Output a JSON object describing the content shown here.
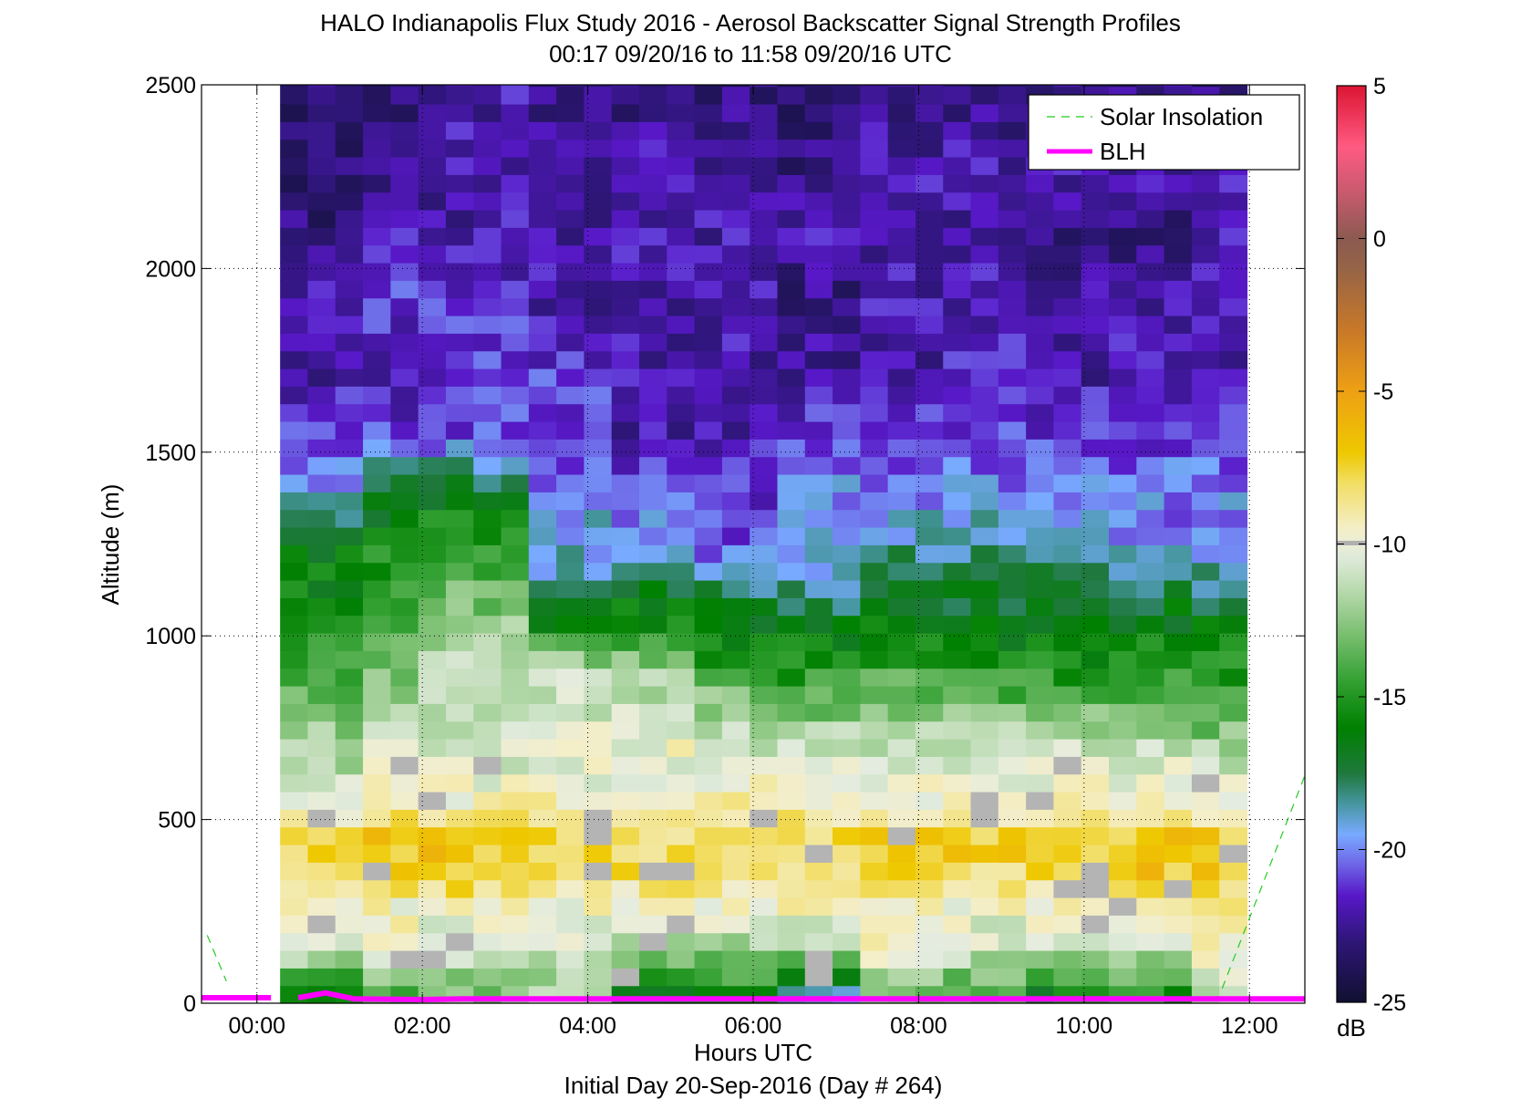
{
  "chart_data": {
    "type": "heatmap",
    "title": "HALO Indianapolis Flux Study 2016 - Aerosol Backscatter Signal Strength Profiles",
    "subtitle": "00:17 09/20/16 to 11:58 09/20/16  UTC",
    "xlabel": "Hours UTC",
    "xlabel2": "Initial Day 20-Sep-2016 (Day # 264)",
    "ylabel": "Altitude (m)",
    "xlim": [
      -0.67,
      12.67
    ],
    "ylim": [
      0,
      2500
    ],
    "x_tick_values": [
      0,
      2,
      4,
      6,
      8,
      10,
      12
    ],
    "x_tick_labels": [
      "00:00",
      "02:00",
      "04:00",
      "06:00",
      "08:00",
      "10:00",
      "12:00"
    ],
    "y_tick_values": [
      0,
      500,
      1000,
      1500,
      2000,
      2500
    ],
    "y_tick_labels": [
      "0",
      "500",
      "1000",
      "1500",
      "2000",
      "2500"
    ],
    "grid": true,
    "colorbar": {
      "label": "dB",
      "limits": [
        -25,
        5
      ],
      "tick_values": [
        5,
        0,
        -5,
        -10,
        -15,
        -20,
        -25
      ],
      "tick_labels": [
        "5",
        "0",
        "-5",
        "-10",
        "-15",
        "-20",
        "-25"
      ]
    },
    "heatmap": {
      "x_start": 0.28,
      "x_end": 11.97,
      "time_bins": 35,
      "height_bin_m": 48,
      "value_units": "dB",
      "profile_altitudes_m": [
        24,
        150,
        250,
        350,
        450,
        520,
        600,
        700,
        800,
        900,
        1000,
        1100,
        1200,
        1300,
        1400,
        1550,
        1700,
        1900,
        2100,
        2300,
        2500
      ],
      "profiles": [
        {
          "hour_start": 0.28,
          "hour_end": 1.3,
          "values": [
            -16,
            -11,
            -10,
            -8,
            -8,
            -10,
            -11,
            -12,
            -13,
            -14,
            -15,
            -16,
            -16,
            -17,
            -20,
            -21,
            -22,
            -22,
            -23,
            -23,
            -23
          ]
        },
        {
          "hour_start": 1.3,
          "hour_end": 2.0,
          "values": [
            -14,
            -9,
            -10,
            -7,
            -7,
            -8,
            -10,
            -11,
            -12,
            -13,
            -14,
            -15,
            -15,
            -16,
            -17,
            -21,
            -22,
            -21,
            -22,
            -23,
            -23
          ]
        },
        {
          "hour_start": 2.0,
          "hour_end": 3.3,
          "values": [
            -13,
            -11,
            -10,
            -7,
            -7,
            -9,
            -10,
            -11,
            -11,
            -11,
            -12,
            -13,
            -14,
            -15,
            -17,
            -21,
            -21,
            -21,
            -22,
            -22,
            -22
          ]
        },
        {
          "hour_start": 3.3,
          "hour_end": 4.3,
          "values": [
            -12,
            -11,
            -10,
            -8,
            -8,
            -9,
            -10,
            -10,
            -11,
            -11,
            -15,
            -18,
            -19,
            -19,
            -20,
            -21,
            -21,
            -22,
            -22,
            -22,
            -23
          ]
        },
        {
          "hour_start": 4.3,
          "hour_end": 5.3,
          "values": [
            -17,
            -12,
            -10,
            -8,
            -8,
            -9,
            -10,
            -10,
            -11,
            -12,
            -15,
            -16,
            -19,
            -20,
            -21,
            -22,
            -22,
            -22,
            -22,
            -22,
            -23
          ]
        },
        {
          "hour_start": 5.3,
          "hour_end": 6.3,
          "values": [
            -16,
            -12,
            -10,
            -8,
            -8,
            -9,
            -10,
            -11,
            -12,
            -14,
            -16,
            -17,
            -20,
            -21,
            -21,
            -22,
            -22,
            -22,
            -22,
            -22,
            -23
          ]
        },
        {
          "hour_start": 6.3,
          "hour_end": 7.3,
          "values": [
            -19,
            -11,
            -10,
            -8,
            -8,
            -9,
            -10,
            -11,
            -13,
            -15,
            -16,
            -18,
            -19,
            -20,
            -20,
            -21,
            -22,
            -23,
            -22,
            -23,
            -23
          ]
        },
        {
          "hour_start": 7.3,
          "hour_end": 8.3,
          "values": [
            -13,
            -9,
            -10,
            -8,
            -7,
            -9,
            -10,
            -11,
            -13,
            -14,
            -16,
            -17,
            -18,
            -19,
            -20,
            -21,
            -22,
            -22,
            -22,
            -22,
            -23
          ]
        },
        {
          "hour_start": 8.3,
          "hour_end": 9.3,
          "values": [
            -14,
            -11,
            -10,
            -8,
            -7,
            -9,
            -10,
            -11,
            -13,
            -15,
            -16,
            -17,
            -18,
            -19,
            -20,
            -21,
            -21,
            -22,
            -22,
            -22,
            -23
          ]
        },
        {
          "hour_start": 9.3,
          "hour_end": 10.3,
          "values": [
            -16,
            -11,
            -10,
            -8,
            -8,
            -9,
            -10,
            -11,
            -13,
            -15,
            -16,
            -17,
            -18,
            -19,
            -20,
            -21,
            -22,
            -22,
            -23,
            -22,
            -23
          ]
        },
        {
          "hour_start": 10.3,
          "hour_end": 11.3,
          "values": [
            -15,
            -11,
            -10,
            -7,
            -7,
            -9,
            -10,
            -11,
            -13,
            -15,
            -16,
            -17,
            -19,
            -20,
            -20,
            -21,
            -22,
            -22,
            -23,
            -22,
            -23
          ]
        },
        {
          "hour_start": 11.3,
          "hour_end": 11.97,
          "values": [
            -11,
            -10,
            -9,
            -7,
            -7,
            -9,
            -10,
            -12,
            -14,
            -15,
            -16,
            -18,
            -19,
            -20,
            -20,
            -21,
            -22,
            -22,
            -22,
            -22,
            -23
          ]
        }
      ]
    },
    "series": [
      {
        "name": "Solar Insolation",
        "style": "dashed",
        "color": "#22cc22",
        "segments": [
          {
            "x": [
              -0.6,
              -0.37
            ],
            "y": [
              185,
              60
            ]
          },
          {
            "x": [
              11.67,
              12.67
            ],
            "y": [
              40,
              620
            ]
          }
        ]
      },
      {
        "name": "BLH",
        "style": "solid",
        "color": "#ff00ff",
        "x": [
          -0.67,
          0.17,
          null,
          0.5,
          0.83,
          1.17,
          2.0,
          2.5,
          4.0,
          6.0,
          8.0,
          10.0,
          12.0,
          12.67
        ],
        "y": [
          15,
          15,
          null,
          15,
          28,
          12,
          10,
          12,
          12,
          12,
          12,
          12,
          12,
          12
        ]
      }
    ],
    "legend": {
      "placement": "top-right",
      "entries": [
        "Solar Insolation",
        "BLH"
      ]
    }
  }
}
